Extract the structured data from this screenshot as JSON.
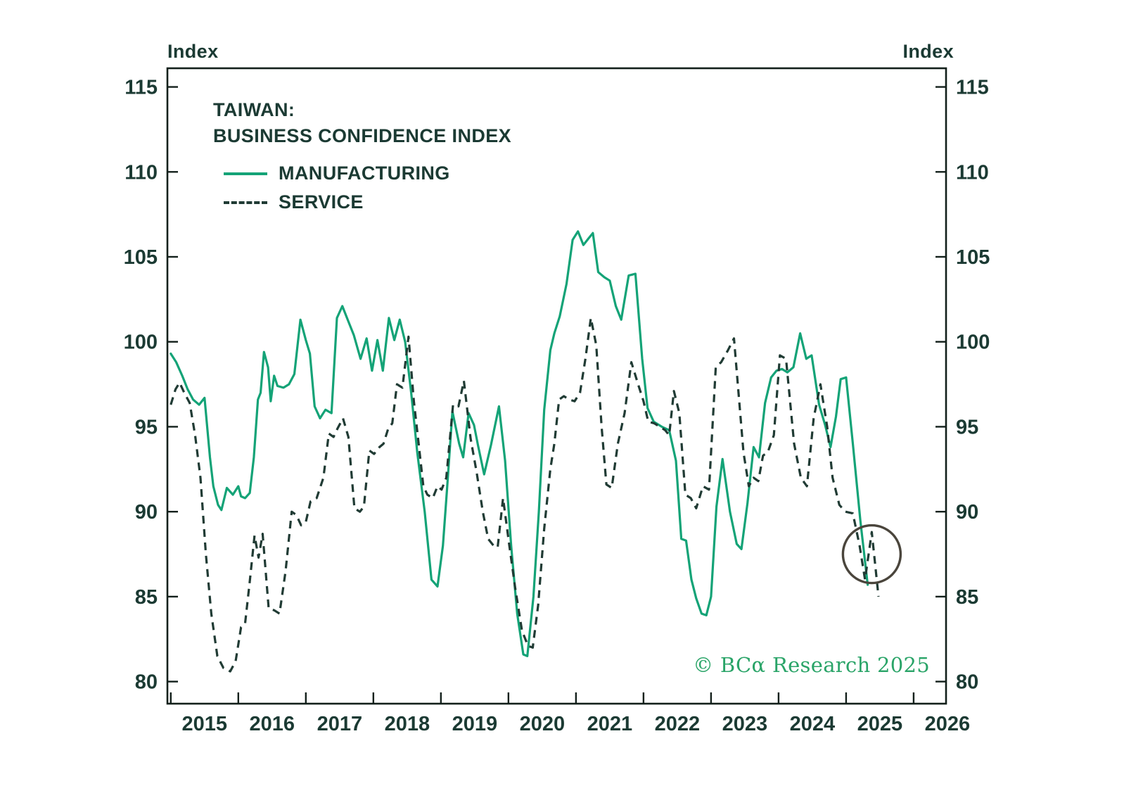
{
  "colors": {
    "ink": "#1b3a33",
    "frame": "#13201b",
    "manufacturing_green": "#14a377",
    "service_dark": "#203b34",
    "copyright_green": "#2aa468",
    "annotation_circle": "#4a453c",
    "background": "#ffffff"
  },
  "chart_data": {
    "type": "line",
    "title_lines": [
      "TAIWAN:",
      "BUSINESS CONFIDENCE INDEX"
    ],
    "axis_label_left": "Index",
    "axis_label_right": "Index",
    "grid": false,
    "legend_position": "top-left-inside",
    "x_ticks": [
      2015,
      2016,
      2017,
      2018,
      2019,
      2020,
      2021,
      2022,
      2023,
      2024,
      2025,
      2026
    ],
    "y_ticks": [
      80,
      85,
      90,
      95,
      100,
      105,
      110,
      115
    ],
    "xlim": [
      2014.95,
      2026.48
    ],
    "ylim": [
      78.7,
      116.1
    ],
    "copyright": "© BCα Research 2025",
    "annotation": {
      "type": "circle",
      "x": 2025.38,
      "y": 87.5,
      "radius_px": 41
    },
    "series": [
      {
        "name": "MANUFACTURING",
        "style": "solid",
        "color": "#14a377",
        "points": [
          [
            2015.0,
            99.3
          ],
          [
            2015.08,
            98.8
          ],
          [
            2015.17,
            98.0
          ],
          [
            2015.25,
            97.2
          ],
          [
            2015.33,
            96.6
          ],
          [
            2015.42,
            96.3
          ],
          [
            2015.5,
            96.7
          ],
          [
            2015.58,
            93.2
          ],
          [
            2015.63,
            91.5
          ],
          [
            2015.7,
            90.4
          ],
          [
            2015.75,
            90.1
          ],
          [
            2015.83,
            91.4
          ],
          [
            2015.92,
            91.0
          ],
          [
            2016.0,
            91.5
          ],
          [
            2016.04,
            90.9
          ],
          [
            2016.1,
            90.8
          ],
          [
            2016.17,
            91.1
          ],
          [
            2016.23,
            93.2
          ],
          [
            2016.29,
            96.6
          ],
          [
            2016.33,
            97.0
          ],
          [
            2016.38,
            99.4
          ],
          [
            2016.44,
            98.5
          ],
          [
            2016.48,
            96.5
          ],
          [
            2016.53,
            98.0
          ],
          [
            2016.58,
            97.4
          ],
          [
            2016.67,
            97.3
          ],
          [
            2016.75,
            97.5
          ],
          [
            2016.83,
            98.1
          ],
          [
            2016.92,
            101.3
          ],
          [
            2017.0,
            100.1
          ],
          [
            2017.06,
            99.3
          ],
          [
            2017.13,
            96.2
          ],
          [
            2017.21,
            95.5
          ],
          [
            2017.29,
            96.0
          ],
          [
            2017.38,
            95.8
          ],
          [
            2017.46,
            101.4
          ],
          [
            2017.54,
            102.1
          ],
          [
            2017.63,
            101.2
          ],
          [
            2017.71,
            100.4
          ],
          [
            2017.81,
            99.0
          ],
          [
            2017.9,
            100.2
          ],
          [
            2017.98,
            98.3
          ],
          [
            2018.06,
            100.1
          ],
          [
            2018.14,
            98.3
          ],
          [
            2018.23,
            101.4
          ],
          [
            2018.31,
            100.1
          ],
          [
            2018.39,
            101.3
          ],
          [
            2018.47,
            100.0
          ],
          [
            2018.56,
            97.0
          ],
          [
            2018.65,
            93.5
          ],
          [
            2018.76,
            90.0
          ],
          [
            2018.86,
            86.0
          ],
          [
            2018.95,
            85.6
          ],
          [
            2019.03,
            88.0
          ],
          [
            2019.09,
            91.3
          ],
          [
            2019.17,
            95.9
          ],
          [
            2019.27,
            94.0
          ],
          [
            2019.33,
            93.2
          ],
          [
            2019.41,
            95.8
          ],
          [
            2019.49,
            95.1
          ],
          [
            2019.55,
            93.9
          ],
          [
            2019.64,
            92.2
          ],
          [
            2019.74,
            93.9
          ],
          [
            2019.86,
            96.2
          ],
          [
            2019.95,
            93.0
          ],
          [
            2020.04,
            88.0
          ],
          [
            2020.13,
            84.0
          ],
          [
            2020.22,
            81.6
          ],
          [
            2020.28,
            81.5
          ],
          [
            2020.37,
            85.0
          ],
          [
            2020.45,
            90.0
          ],
          [
            2020.53,
            96.0
          ],
          [
            2020.62,
            99.5
          ],
          [
            2020.68,
            100.5
          ],
          [
            2020.76,
            101.5
          ],
          [
            2020.86,
            103.4
          ],
          [
            2020.95,
            106.0
          ],
          [
            2021.03,
            106.5
          ],
          [
            2021.11,
            105.7
          ],
          [
            2021.19,
            106.1
          ],
          [
            2021.25,
            106.4
          ],
          [
            2021.33,
            104.1
          ],
          [
            2021.42,
            103.8
          ],
          [
            2021.5,
            103.6
          ],
          [
            2021.59,
            102.1
          ],
          [
            2021.67,
            101.3
          ],
          [
            2021.78,
            103.9
          ],
          [
            2021.88,
            104.0
          ],
          [
            2021.98,
            99.0
          ],
          [
            2022.06,
            96.1
          ],
          [
            2022.15,
            95.3
          ],
          [
            2022.27,
            95.0
          ],
          [
            2022.38,
            94.8
          ],
          [
            2022.48,
            93.0
          ],
          [
            2022.56,
            88.4
          ],
          [
            2022.63,
            88.3
          ],
          [
            2022.71,
            86.0
          ],
          [
            2022.78,
            84.9
          ],
          [
            2022.86,
            84.0
          ],
          [
            2022.93,
            83.9
          ],
          [
            2023.0,
            85.0
          ],
          [
            2023.08,
            90.3
          ],
          [
            2023.17,
            93.1
          ],
          [
            2023.28,
            90.0
          ],
          [
            2023.38,
            88.1
          ],
          [
            2023.45,
            87.8
          ],
          [
            2023.54,
            90.5
          ],
          [
            2023.63,
            93.8
          ],
          [
            2023.71,
            93.2
          ],
          [
            2023.8,
            96.4
          ],
          [
            2023.89,
            97.9
          ],
          [
            2023.97,
            98.3
          ],
          [
            2024.05,
            98.4
          ],
          [
            2024.13,
            98.2
          ],
          [
            2024.22,
            98.5
          ],
          [
            2024.32,
            100.5
          ],
          [
            2024.41,
            99.0
          ],
          [
            2024.49,
            99.2
          ],
          [
            2024.6,
            96.3
          ],
          [
            2024.69,
            95.1
          ],
          [
            2024.77,
            93.8
          ],
          [
            2024.85,
            95.6
          ],
          [
            2024.92,
            97.8
          ],
          [
            2025.0,
            97.9
          ],
          [
            2025.1,
            94.0
          ],
          [
            2025.21,
            89.5
          ],
          [
            2025.32,
            85.7
          ]
        ]
      },
      {
        "name": "SERVICE",
        "style": "dashed",
        "color": "#203b34",
        "points": [
          [
            2015.0,
            96.3
          ],
          [
            2015.07,
            97.2
          ],
          [
            2015.13,
            97.6
          ],
          [
            2015.2,
            97.0
          ],
          [
            2015.28,
            96.4
          ],
          [
            2015.36,
            94.5
          ],
          [
            2015.44,
            92.0
          ],
          [
            2015.52,
            87.5
          ],
          [
            2015.6,
            84.0
          ],
          [
            2015.69,
            81.5
          ],
          [
            2015.78,
            80.8
          ],
          [
            2015.88,
            80.6
          ],
          [
            2015.96,
            81.2
          ],
          [
            2016.04,
            83.2
          ],
          [
            2016.1,
            83.4
          ],
          [
            2016.17,
            85.9
          ],
          [
            2016.24,
            88.6
          ],
          [
            2016.3,
            87.3
          ],
          [
            2016.36,
            88.7
          ],
          [
            2016.45,
            84.3
          ],
          [
            2016.53,
            84.2
          ],
          [
            2016.61,
            84.0
          ],
          [
            2016.7,
            86.5
          ],
          [
            2016.79,
            90.0
          ],
          [
            2016.86,
            89.8
          ],
          [
            2016.93,
            89.2
          ],
          [
            2017.0,
            89.4
          ],
          [
            2017.07,
            90.6
          ],
          [
            2017.16,
            90.8
          ],
          [
            2017.26,
            92.0
          ],
          [
            2017.34,
            94.6
          ],
          [
            2017.41,
            94.4
          ],
          [
            2017.47,
            94.9
          ],
          [
            2017.55,
            95.5
          ],
          [
            2017.63,
            94.4
          ],
          [
            2017.72,
            90.2
          ],
          [
            2017.8,
            90.0
          ],
          [
            2017.86,
            90.3
          ],
          [
            2017.94,
            93.6
          ],
          [
            2018.01,
            93.4
          ],
          [
            2018.09,
            93.8
          ],
          [
            2018.15,
            94.0
          ],
          [
            2018.22,
            94.9
          ],
          [
            2018.28,
            95.2
          ],
          [
            2018.35,
            97.5
          ],
          [
            2018.43,
            97.3
          ],
          [
            2018.52,
            100.3
          ],
          [
            2018.6,
            96.5
          ],
          [
            2018.67,
            94.0
          ],
          [
            2018.74,
            91.5
          ],
          [
            2018.8,
            91.0
          ],
          [
            2018.88,
            90.8
          ],
          [
            2018.95,
            91.5
          ],
          [
            2019.01,
            91.3
          ],
          [
            2019.08,
            92.0
          ],
          [
            2019.18,
            96.3
          ],
          [
            2019.26,
            96.2
          ],
          [
            2019.34,
            97.7
          ],
          [
            2019.44,
            94.3
          ],
          [
            2019.53,
            92.3
          ],
          [
            2019.62,
            90.0
          ],
          [
            2019.7,
            88.4
          ],
          [
            2019.78,
            88.0
          ],
          [
            2019.84,
            87.9
          ],
          [
            2019.92,
            90.8
          ],
          [
            2020.01,
            88.1
          ],
          [
            2020.1,
            85.5
          ],
          [
            2020.2,
            83.0
          ],
          [
            2020.29,
            82.1
          ],
          [
            2020.36,
            82.0
          ],
          [
            2020.44,
            84.5
          ],
          [
            2020.53,
            89.0
          ],
          [
            2020.62,
            92.5
          ],
          [
            2020.68,
            94.0
          ],
          [
            2020.75,
            96.6
          ],
          [
            2020.82,
            96.8
          ],
          [
            2020.9,
            96.6
          ],
          [
            2020.98,
            96.5
          ],
          [
            2021.06,
            97.0
          ],
          [
            2021.14,
            99.0
          ],
          [
            2021.22,
            101.4
          ],
          [
            2021.3,
            99.8
          ],
          [
            2021.38,
            95.0
          ],
          [
            2021.45,
            91.6
          ],
          [
            2021.53,
            91.4
          ],
          [
            2021.62,
            94.0
          ],
          [
            2021.72,
            95.8
          ],
          [
            2021.82,
            98.8
          ],
          [
            2021.92,
            97.5
          ],
          [
            2022.0,
            96.5
          ],
          [
            2022.07,
            95.3
          ],
          [
            2022.16,
            95.2
          ],
          [
            2022.24,
            95.0
          ],
          [
            2022.32,
            94.8
          ],
          [
            2022.38,
            94.5
          ],
          [
            2022.45,
            97.1
          ],
          [
            2022.53,
            95.8
          ],
          [
            2022.62,
            91.0
          ],
          [
            2022.7,
            90.8
          ],
          [
            2022.78,
            90.2
          ],
          [
            2022.88,
            91.5
          ],
          [
            2022.97,
            91.3
          ],
          [
            2023.07,
            98.5
          ],
          [
            2023.15,
            98.8
          ],
          [
            2023.25,
            99.5
          ],
          [
            2023.34,
            100.2
          ],
          [
            2023.48,
            93.5
          ],
          [
            2023.56,
            91.5
          ],
          [
            2023.63,
            92.0
          ],
          [
            2023.7,
            91.8
          ],
          [
            2023.77,
            93.3
          ],
          [
            2023.84,
            93.5
          ],
          [
            2023.93,
            94.5
          ],
          [
            2024.02,
            99.2
          ],
          [
            2024.11,
            99.0
          ],
          [
            2024.23,
            94.0
          ],
          [
            2024.33,
            92.0
          ],
          [
            2024.42,
            91.5
          ],
          [
            2024.52,
            95.5
          ],
          [
            2024.62,
            97.5
          ],
          [
            2024.72,
            95.0
          ],
          [
            2024.8,
            92.0
          ],
          [
            2024.9,
            90.4
          ],
          [
            2024.99,
            90.0
          ],
          [
            2025.1,
            89.9
          ],
          [
            2025.2,
            88.0
          ],
          [
            2025.28,
            86.0
          ],
          [
            2025.38,
            88.8
          ],
          [
            2025.48,
            85.0
          ]
        ]
      }
    ]
  }
}
